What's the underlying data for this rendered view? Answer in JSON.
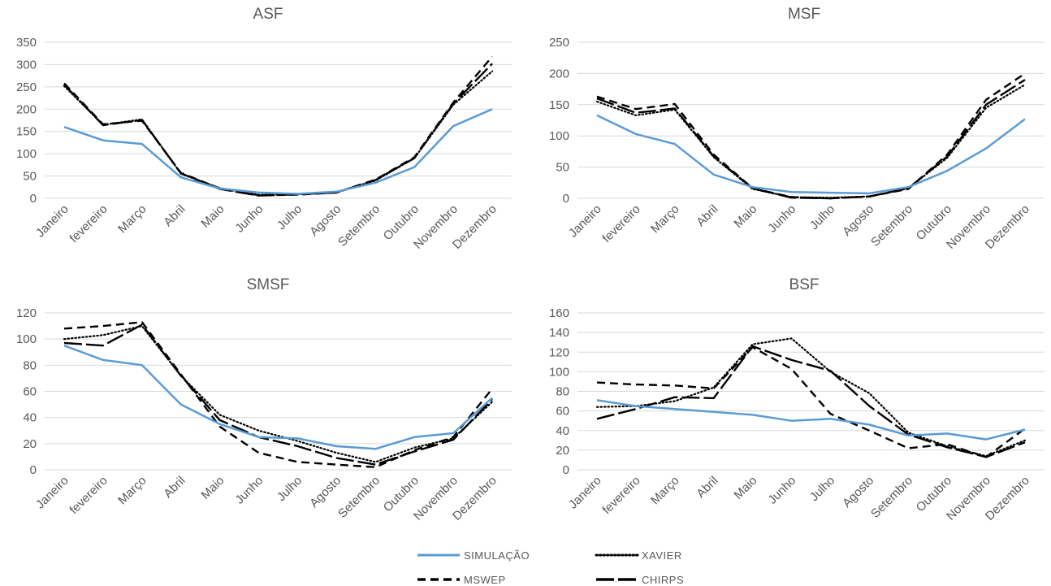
{
  "chart_data": [
    {
      "type": "line",
      "title": "ASF",
      "categories": [
        "Janeiro",
        "fevereiro",
        "Março",
        "Abril",
        "Maio",
        "Junho",
        "Julho",
        "Agosto",
        "Setembro",
        "Outubro",
        "Novembro",
        "Dezembro"
      ],
      "ylim": [
        0,
        350
      ],
      "yticks": [
        0,
        50,
        100,
        150,
        200,
        250,
        300,
        350
      ],
      "grid": true,
      "series": [
        {
          "name": "SIMULAÇÃO",
          "values": [
            160,
            130,
            122,
            47,
            22,
            13,
            10,
            15,
            35,
            70,
            162,
            200
          ]
        },
        {
          "name": "XAVIER",
          "values": [
            252,
            165,
            177,
            55,
            23,
            8,
            9,
            14,
            40,
            90,
            210,
            285
          ]
        },
        {
          "name": "MSWEP",
          "values": [
            258,
            166,
            174,
            57,
            22,
            7,
            8,
            13,
            42,
            92,
            215,
            318
          ]
        },
        {
          "name": "CHIRPS",
          "values": [
            255,
            164,
            176,
            56,
            21,
            6,
            9,
            13,
            41,
            90,
            212,
            302
          ]
        }
      ]
    },
    {
      "type": "line",
      "title": "MSF",
      "categories": [
        "Janeiro",
        "fevereiro",
        "Março",
        "Abril",
        "Maio",
        "Junho",
        "Julho",
        "Agosto",
        "Setembro",
        "Outubro",
        "Novembro",
        "Dezembro"
      ],
      "ylim": [
        0,
        250
      ],
      "yticks": [
        0,
        50,
        100,
        150,
        200,
        250
      ],
      "grid": true,
      "series": [
        {
          "name": "SIMULAÇÃO",
          "values": [
            133,
            103,
            87,
            38,
            18,
            10,
            9,
            8,
            18,
            44,
            80,
            127
          ]
        },
        {
          "name": "XAVIER",
          "values": [
            155,
            133,
            142,
            66,
            15,
            2,
            1,
            3,
            16,
            65,
            145,
            182
          ]
        },
        {
          "name": "MSWEP",
          "values": [
            163,
            143,
            151,
            70,
            16,
            2,
            0,
            3,
            15,
            70,
            158,
            200
          ]
        },
        {
          "name": "CHIRPS",
          "values": [
            160,
            137,
            144,
            67,
            16,
            1,
            0,
            3,
            16,
            67,
            150,
            190
          ]
        }
      ]
    },
    {
      "type": "line",
      "title": "SMSF",
      "categories": [
        "Janeiro",
        "fevereiro",
        "Março",
        "Abril",
        "Maio",
        "Junho",
        "Julho",
        "Agosto",
        "Setembro",
        "Outubro",
        "Novembro",
        "Dezembro"
      ],
      "ylim": [
        0,
        120
      ],
      "yticks": [
        0,
        20,
        40,
        60,
        80,
        100,
        120
      ],
      "grid": true,
      "series": [
        {
          "name": "SIMULAÇÃO",
          "values": [
            95,
            84,
            80,
            50,
            35,
            25,
            24,
            18,
            16,
            25,
            28,
            55
          ]
        },
        {
          "name": "XAVIER",
          "values": [
            100,
            103,
            110,
            72,
            42,
            30,
            22,
            13,
            6,
            17,
            24,
            52
          ]
        },
        {
          "name": "MSWEP",
          "values": [
            108,
            110,
            113,
            73,
            33,
            13,
            6,
            4,
            2,
            15,
            25,
            62
          ]
        },
        {
          "name": "CHIRPS",
          "values": [
            97,
            95,
            111,
            72,
            38,
            25,
            18,
            9,
            4,
            14,
            23,
            54
          ]
        }
      ]
    },
    {
      "type": "line",
      "title": "BSF",
      "categories": [
        "Janeiro",
        "fevereiro",
        "Março",
        "Abril",
        "Maio",
        "Junho",
        "Julho",
        "Agosto",
        "Setembro",
        "Outubro",
        "Novembro",
        "Dezembro"
      ],
      "ylim": [
        0,
        160
      ],
      "yticks": [
        0,
        20,
        40,
        60,
        80,
        100,
        120,
        140,
        160
      ],
      "grid": true,
      "series": [
        {
          "name": "SIMULAÇÃO",
          "values": [
            71,
            65,
            62,
            59,
            56,
            50,
            52,
            46,
            35,
            37,
            31,
            41
          ]
        },
        {
          "name": "XAVIER",
          "values": [
            64,
            65,
            70,
            84,
            128,
            134,
            100,
            78,
            38,
            24,
            14,
            30
          ]
        },
        {
          "name": "MSWEP",
          "values": [
            89,
            87,
            86,
            83,
            125,
            103,
            57,
            40,
            22,
            26,
            13,
            42
          ]
        },
        {
          "name": "CHIRPS",
          "values": [
            52,
            62,
            74,
            73,
            126,
            112,
            101,
            65,
            36,
            23,
            13,
            28
          ]
        }
      ]
    }
  ],
  "legend": {
    "placement": "bottom",
    "items": [
      {
        "label": "SIMULAÇÃO",
        "color": "#5b9bd5",
        "style": "solid"
      },
      {
        "label": "XAVIER",
        "color": "#000000",
        "style": "dotted"
      },
      {
        "label": "MSWEP",
        "color": "#000000",
        "style": "dashed"
      },
      {
        "label": "CHIRPS",
        "color": "#000000",
        "style": "long-dash"
      }
    ]
  }
}
